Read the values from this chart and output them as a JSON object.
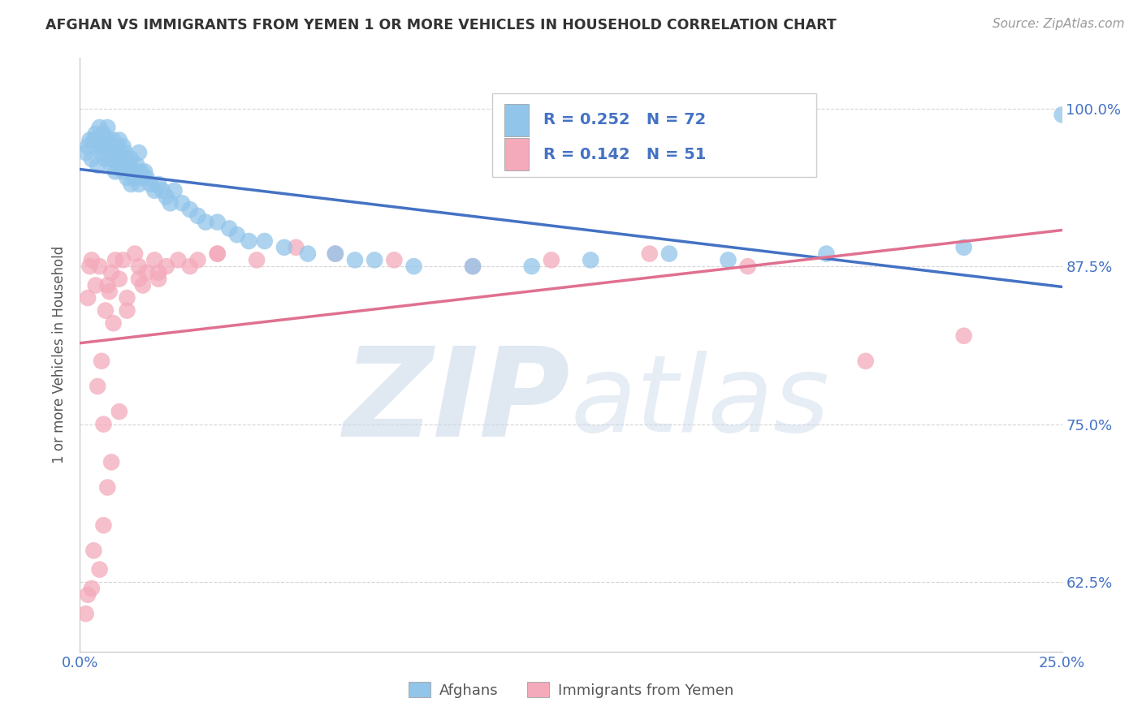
{
  "title": "AFGHAN VS IMMIGRANTS FROM YEMEN 1 OR MORE VEHICLES IN HOUSEHOLD CORRELATION CHART",
  "source": "Source: ZipAtlas.com",
  "ylabel": "1 or more Vehicles in Household",
  "yticks": [
    62.5,
    75.0,
    87.5,
    100.0
  ],
  "ytick_labels": [
    "62.5%",
    "75.0%",
    "87.5%",
    "100.0%"
  ],
  "xmin": 0.0,
  "xmax": 25.0,
  "ymin": 57.0,
  "ymax": 104.0,
  "legend_r1": "R = 0.252",
  "legend_n1": "N = 72",
  "legend_r2": "R = 0.142",
  "legend_n2": "N = 51",
  "legend_label1": "Afghans",
  "legend_label2": "Immigrants from Yemen",
  "blue_color": "#92C5EA",
  "pink_color": "#F4AABB",
  "line_blue": "#4472C4",
  "line_pink": "#E07090",
  "watermark_zip": "ZIP",
  "watermark_atlas": "atlas",
  "blue_x": [
    0.15,
    0.2,
    0.25,
    0.3,
    0.35,
    0.4,
    0.45,
    0.5,
    0.5,
    0.55,
    0.6,
    0.6,
    0.65,
    0.7,
    0.7,
    0.75,
    0.8,
    0.8,
    0.85,
    0.9,
    0.9,
    0.95,
    1.0,
    1.0,
    1.05,
    1.1,
    1.1,
    1.15,
    1.2,
    1.2,
    1.25,
    1.3,
    1.3,
    1.35,
    1.4,
    1.45,
    1.5,
    1.5,
    1.55,
    1.6,
    1.65,
    1.7,
    1.8,
    1.9,
    2.0,
    2.1,
    2.2,
    2.3,
    2.4,
    2.6,
    2.8,
    3.0,
    3.2,
    3.5,
    3.8,
    4.0,
    4.3,
    4.7,
    5.2,
    5.8,
    6.5,
    7.0,
    7.5,
    8.5,
    10.0,
    11.5,
    13.0,
    15.0,
    16.5,
    19.0,
    22.5,
    25.0
  ],
  "blue_y": [
    96.5,
    97.0,
    97.5,
    96.0,
    97.5,
    98.0,
    95.5,
    97.0,
    98.5,
    96.5,
    97.0,
    98.0,
    96.0,
    97.5,
    98.5,
    96.0,
    95.5,
    97.0,
    97.5,
    95.0,
    96.5,
    97.0,
    95.5,
    97.5,
    96.0,
    95.0,
    97.0,
    96.5,
    94.5,
    96.0,
    95.5,
    94.0,
    96.0,
    95.0,
    94.5,
    95.5,
    94.0,
    96.5,
    95.0,
    94.5,
    95.0,
    94.5,
    94.0,
    93.5,
    94.0,
    93.5,
    93.0,
    92.5,
    93.5,
    92.5,
    92.0,
    91.5,
    91.0,
    91.0,
    90.5,
    90.0,
    89.5,
    89.5,
    89.0,
    88.5,
    88.5,
    88.0,
    88.0,
    87.5,
    87.5,
    87.5,
    88.0,
    88.5,
    88.0,
    88.5,
    89.0,
    99.5
  ],
  "pink_x": [
    0.15,
    0.2,
    0.25,
    0.3,
    0.35,
    0.4,
    0.45,
    0.5,
    0.55,
    0.6,
    0.65,
    0.7,
    0.75,
    0.8,
    0.85,
    0.9,
    1.0,
    1.1,
    1.2,
    1.4,
    1.5,
    1.6,
    1.7,
    1.9,
    2.0,
    2.2,
    2.5,
    2.8,
    3.0,
    3.5,
    4.5,
    5.5,
    6.5,
    8.0,
    10.0,
    12.0,
    14.5,
    17.0,
    20.0,
    22.5,
    0.2,
    0.3,
    0.5,
    0.6,
    0.7,
    0.8,
    1.0,
    1.2,
    1.5,
    2.0,
    3.5
  ],
  "pink_y": [
    60.0,
    85.0,
    87.5,
    88.0,
    65.0,
    86.0,
    78.0,
    87.5,
    80.0,
    75.0,
    84.0,
    86.0,
    85.5,
    87.0,
    83.0,
    88.0,
    86.5,
    88.0,
    85.0,
    88.5,
    87.5,
    86.0,
    87.0,
    88.0,
    86.5,
    87.5,
    88.0,
    87.5,
    88.0,
    88.5,
    88.0,
    89.0,
    88.5,
    88.0,
    87.5,
    88.0,
    88.5,
    87.5,
    80.0,
    82.0,
    61.5,
    62.0,
    63.5,
    67.0,
    70.0,
    72.0,
    76.0,
    84.0,
    86.5,
    87.0,
    88.5
  ]
}
